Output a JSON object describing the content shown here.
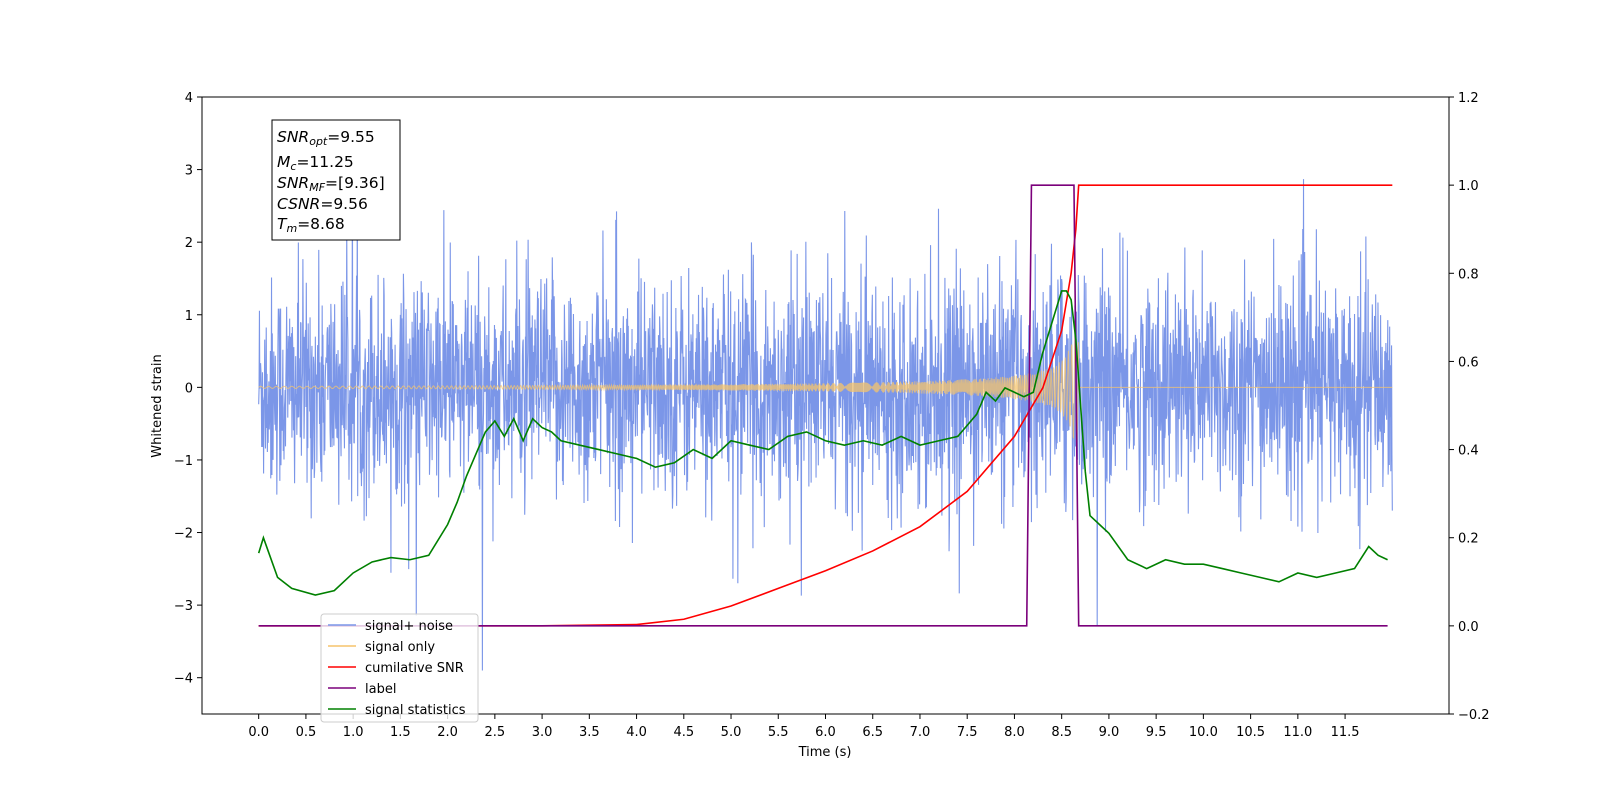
{
  "chart_data": {
    "type": "line",
    "xlabel": "Time (s)",
    "ylabel_left": "Whitened strain",
    "ylabel_right": "",
    "xlim": [
      -0.6,
      12.6
    ],
    "ylim_left": [
      -4.5,
      4.0
    ],
    "ylim_right": [
      -0.2,
      1.2
    ],
    "x_ticks": [
      "0.0",
      "0.5",
      "1.0",
      "1.5",
      "2.0",
      "2.5",
      "3.0",
      "3.5",
      "4.0",
      "4.5",
      "5.0",
      "5.5",
      "6.0",
      "6.5",
      "7.0",
      "7.5",
      "8.0",
      "8.5",
      "9.0",
      "9.5",
      "10.0",
      "10.5",
      "11.0",
      "11.5"
    ],
    "y_ticks_left": [
      "4",
      "3",
      "2",
      "1",
      "0",
      "−1",
      "−2",
      "−3",
      "−4"
    ],
    "y_ticks_right": [
      "1.2",
      "1.0",
      "0.8",
      "0.6",
      "0.4",
      "0.2",
      "0.0",
      "−0.2"
    ],
    "grid": false,
    "legend_position": "lower-left",
    "annotation": {
      "snr_opt": {
        "sym": "SNR",
        "sub": "opt",
        "val": "=9.55"
      },
      "mc": {
        "sym": "M",
        "sub": "c",
        "val": "=11.25"
      },
      "snr_mf": {
        "sym": "SNR",
        "sub": "MF",
        "val": "=[9.36]"
      },
      "csnr": {
        "sym": "CSNR",
        "sub": "",
        "val": "=9.56"
      },
      "tm": {
        "sym": "T",
        "sub": "m",
        "val": "=8.68"
      }
    },
    "series": [
      {
        "name": "signal+ noise",
        "axis": "left",
        "color": "#7b96e8",
        "style": "noisy strain, amplitude ~±1.7 with spikes to ~3.6, x 0.0–12.0"
      },
      {
        "name": "signal only",
        "axis": "left",
        "color": "#f5c46c",
        "style": "chirp, amplitude grows from 0 to ~0.8 ending at 8.68 s"
      },
      {
        "name": "cumilative SNR",
        "axis": "right",
        "color": "#ff0000",
        "x": [
          0.0,
          3.0,
          4.0,
          4.5,
          5.0,
          5.5,
          6.0,
          6.5,
          7.0,
          7.5,
          8.0,
          8.3,
          8.5,
          8.6,
          8.65,
          8.68,
          12.0
        ],
        "y": [
          0.0,
          0.0,
          0.003,
          0.015,
          0.045,
          0.085,
          0.125,
          0.17,
          0.225,
          0.305,
          0.43,
          0.54,
          0.67,
          0.8,
          0.9,
          1.0,
          1.0
        ]
      },
      {
        "name": "label",
        "axis": "right",
        "color": "#7b007b",
        "x": [
          0.0,
          8.13,
          8.18,
          8.63,
          8.68,
          11.95
        ],
        "y": [
          0.0,
          0.0,
          1.0,
          1.0,
          0.0,
          0.0
        ]
      },
      {
        "name": "signal statistics",
        "axis": "right",
        "color": "#008000",
        "x": [
          0.0,
          0.05,
          0.1,
          0.2,
          0.35,
          0.6,
          0.8,
          1.0,
          1.2,
          1.4,
          1.6,
          1.8,
          2.0,
          2.1,
          2.2,
          2.3,
          2.4,
          2.5,
          2.6,
          2.7,
          2.8,
          2.9,
          3.0,
          3.1,
          3.2,
          3.4,
          3.6,
          3.8,
          4.0,
          4.2,
          4.4,
          4.6,
          4.8,
          5.0,
          5.2,
          5.4,
          5.6,
          5.8,
          6.0,
          6.2,
          6.4,
          6.6,
          6.8,
          7.0,
          7.2,
          7.4,
          7.6,
          7.7,
          7.8,
          7.9,
          8.0,
          8.1,
          8.2,
          8.3,
          8.4,
          8.5,
          8.55,
          8.6,
          8.65,
          8.7,
          8.75,
          8.8,
          8.9,
          9.0,
          9.2,
          9.4,
          9.6,
          9.8,
          10.0,
          10.2,
          10.4,
          10.6,
          10.8,
          11.0,
          11.2,
          11.4,
          11.6,
          11.75,
          11.85,
          11.95
        ],
        "y": [
          0.165,
          0.2,
          0.17,
          0.11,
          0.085,
          0.07,
          0.08,
          0.12,
          0.145,
          0.155,
          0.15,
          0.16,
          0.23,
          0.28,
          0.34,
          0.39,
          0.44,
          0.465,
          0.43,
          0.47,
          0.42,
          0.47,
          0.45,
          0.44,
          0.42,
          0.41,
          0.4,
          0.39,
          0.38,
          0.36,
          0.37,
          0.4,
          0.38,
          0.42,
          0.41,
          0.4,
          0.43,
          0.44,
          0.42,
          0.41,
          0.42,
          0.41,
          0.43,
          0.41,
          0.42,
          0.43,
          0.48,
          0.53,
          0.51,
          0.54,
          0.53,
          0.52,
          0.53,
          0.62,
          0.69,
          0.76,
          0.76,
          0.74,
          0.65,
          0.5,
          0.35,
          0.25,
          0.23,
          0.21,
          0.15,
          0.13,
          0.15,
          0.14,
          0.14,
          0.13,
          0.12,
          0.11,
          0.1,
          0.12,
          0.11,
          0.12,
          0.13,
          0.18,
          0.16,
          0.15
        ]
      }
    ]
  }
}
